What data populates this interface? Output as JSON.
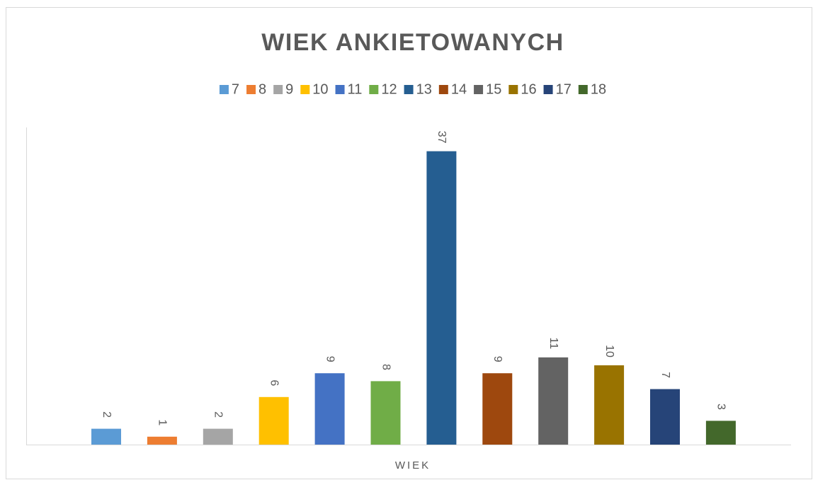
{
  "chart_data": {
    "type": "bar",
    "title": "WIEK ANKIETOWANYCH",
    "categories": [
      "WIEK"
    ],
    "series": [
      {
        "name": "7",
        "color": "#5b9bd5",
        "values": [
          2
        ]
      },
      {
        "name": "8",
        "color": "#ed7d31",
        "values": [
          1
        ]
      },
      {
        "name": "9",
        "color": "#a5a5a5",
        "values": [
          2
        ]
      },
      {
        "name": "10",
        "color": "#ffc000",
        "values": [
          6
        ]
      },
      {
        "name": "11",
        "color": "#4472c4",
        "values": [
          9
        ]
      },
      {
        "name": "12",
        "color": "#70ad47",
        "values": [
          8
        ]
      },
      {
        "name": "13",
        "color": "#255e91",
        "values": [
          37
        ]
      },
      {
        "name": "14",
        "color": "#9e480e",
        "values": [
          9
        ]
      },
      {
        "name": "15",
        "color": "#636363",
        "values": [
          11
        ]
      },
      {
        "name": "16",
        "color": "#997300",
        "values": [
          10
        ]
      },
      {
        "name": "17",
        "color": "#264478",
        "values": [
          7
        ]
      },
      {
        "name": "18",
        "color": "#43682b",
        "values": [
          3
        ]
      }
    ],
    "ylim": [
      0,
      40
    ]
  }
}
